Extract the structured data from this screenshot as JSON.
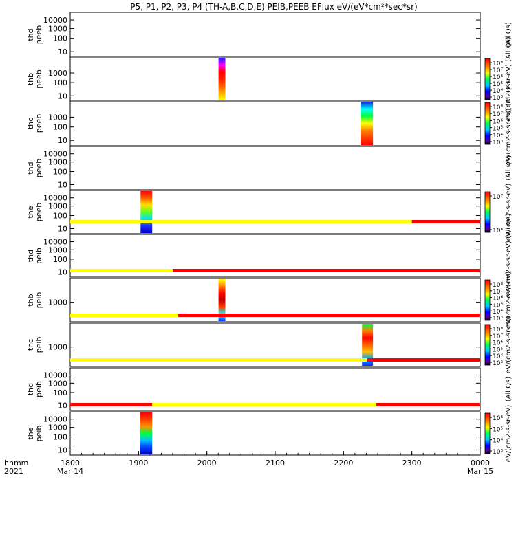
{
  "chart_data": {
    "type": "heatmap",
    "title": "P5, P1, P2, P3, P4 (TH-A,B,C,D,E) PEIB,PEEB EFlux eV/(eV*cm²*sec*sr)",
    "x_axis": {
      "corner_labels": [
        "hhmm",
        "2021"
      ],
      "ticks": [
        {
          "label": "1800",
          "date": "Mar 14",
          "hour": 18
        },
        {
          "label": "1900",
          "date": "",
          "hour": 19
        },
        {
          "label": "2000",
          "date": "",
          "hour": 20
        },
        {
          "label": "2100",
          "date": "",
          "hour": 21
        },
        {
          "label": "2200",
          "date": "",
          "hour": 22
        },
        {
          "label": "2300",
          "date": "",
          "hour": 23
        },
        {
          "label": "0000",
          "date": "Mar 15",
          "hour": 24
        }
      ],
      "range_hours": [
        18,
        24
      ]
    },
    "panels": [
      {
        "id": "thd-peeb",
        "label": [
          "thd",
          "peeb"
        ],
        "yticks": [
          "10000",
          "1000",
          "100",
          "10"
        ],
        "colorbar_label": "(All Qs)",
        "has_colorbar": false,
        "bursts": []
      },
      {
        "id": "thb-peeb",
        "label": [
          "thb",
          "peeb"
        ],
        "yticks": [
          "1000",
          "100",
          "10"
        ],
        "colorbar_label": "eV/(cm2-s-sr-eV) (All Qs)",
        "has_colorbar": true,
        "cb_ticks": [
          "10⁸",
          "10⁷",
          "10⁶",
          "10⁵",
          "10⁴",
          "10³"
        ],
        "bursts": [
          {
            "start": 20.17,
            "end": 20.27,
            "scheme": "thb-peeb"
          }
        ]
      },
      {
        "id": "thc-peeb",
        "label": [
          "thc",
          "peeb"
        ],
        "yticks": [
          "1000",
          "100",
          "10"
        ],
        "colorbar_label": "eV/(cm2-s-sr-eV) (All Qs)",
        "has_colorbar": true,
        "cb_ticks": [
          "10⁸",
          "10⁷",
          "10⁶",
          "10⁵",
          "10⁴",
          "10³"
        ],
        "bursts": [
          {
            "start": 22.25,
            "end": 22.43,
            "scheme": "thc-peeb"
          }
        ]
      },
      {
        "id": "thd-peeb-2",
        "label": [
          "thd",
          "peeb"
        ],
        "yticks": [
          "10000",
          "1000",
          "100",
          "10"
        ],
        "colorbar_label": "(All Qs)",
        "has_colorbar": false,
        "bursts": []
      },
      {
        "id": "the-peeb",
        "label": [
          "the",
          "peeb"
        ],
        "yticks": [
          "10000",
          "1000",
          "100",
          "10"
        ],
        "colorbar_label": "eV/(cm2-s-sr-eV)",
        "has_colorbar": true,
        "cb_ticks": [
          "10⁷",
          "10⁶"
        ],
        "bursts": [
          {
            "start": 19.03,
            "end": 19.2,
            "scheme": "the-peeb"
          }
        ]
      },
      {
        "id": "thd-peib",
        "label": [
          "thd",
          "peib"
        ],
        "yticks": [
          "10000",
          "1000",
          "100",
          "10"
        ],
        "colorbar_label": "eV/(cm2-s-sr-eV) (All Qs)",
        "has_colorbar": false,
        "bursts": []
      },
      {
        "id": "thb-peib",
        "label": [
          "thb",
          "peib"
        ],
        "yticks": [
          "1000"
        ],
        "colorbar_label": "eV/(cm2-s-sr-eV)",
        "has_colorbar": true,
        "cb_ticks": [
          "10⁸",
          "10⁷",
          "10⁶",
          "10⁵",
          "10⁴",
          "10³"
        ],
        "bursts": [
          {
            "start": 20.17,
            "end": 20.27,
            "scheme": "thb-peib"
          }
        ]
      },
      {
        "id": "thc-peib",
        "label": [
          "thc",
          "peib"
        ],
        "yticks": [
          "1000"
        ],
        "colorbar_label": "eV/(cm2-s-sr-eV)",
        "has_colorbar": true,
        "cb_ticks": [
          "10⁸",
          "10⁷",
          "10⁶",
          "10⁵",
          "10⁴",
          "10³"
        ],
        "bursts": [
          {
            "start": 22.27,
            "end": 22.43,
            "scheme": "thc-peib"
          }
        ]
      },
      {
        "id": "thd-peib-2",
        "label": [
          "thd",
          "peib"
        ],
        "yticks": [
          "10000",
          "1000",
          "100",
          "10"
        ],
        "colorbar_label": "(All Qs)",
        "has_colorbar": false,
        "bursts": []
      },
      {
        "id": "the-peib",
        "label": [
          "the",
          "peib"
        ],
        "yticks": [
          "10000",
          "1000",
          "100",
          "10"
        ],
        "colorbar_label": "eV/(cm2-s-sr-eV)",
        "has_colorbar": true,
        "cb_ticks": [
          "10⁶",
          "10⁵",
          "10⁴",
          "10³"
        ],
        "bursts": [
          {
            "start": 19.02,
            "end": 19.2,
            "scheme": "the-peib"
          }
        ]
      }
    ],
    "status_bars": [
      {
        "above_panel": 5,
        "segments": [
          {
            "start": 18,
            "end": 23.0,
            "color": "#ffff00"
          },
          {
            "start": 23.0,
            "end": 24,
            "color": "#ff0000"
          }
        ]
      },
      {
        "above_panel": 6,
        "segments": [
          {
            "start": 18,
            "end": 19.5,
            "color": "#ffff00"
          },
          {
            "start": 19.5,
            "end": 24,
            "color": "#ff0000"
          }
        ]
      },
      {
        "above_panel": 7,
        "segments": [
          {
            "start": 18,
            "end": 19.58,
            "color": "#ffff00"
          },
          {
            "start": 19.58,
            "end": 24,
            "color": "#ff0000"
          }
        ]
      },
      {
        "above_panel": 8,
        "segments": [
          {
            "start": 18,
            "end": 22.35,
            "color": "#ffff00"
          },
          {
            "start": 22.35,
            "end": 24,
            "color": "#ff0000"
          }
        ]
      },
      {
        "above_panel": 9,
        "segments": [
          {
            "start": 18,
            "end": 19.2,
            "color": "#ff0000"
          },
          {
            "start": 19.2,
            "end": 22.48,
            "color": "#ffff00"
          },
          {
            "start": 22.48,
            "end": 24,
            "color": "#ff0000"
          }
        ]
      }
    ]
  }
}
